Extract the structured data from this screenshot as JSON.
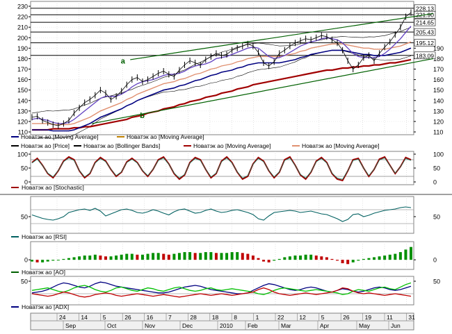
{
  "chart_data": [
    {
      "type": "line",
      "panel": "price",
      "ylim": [
        110,
        232
      ],
      "ticks_left": [
        110,
        120,
        130,
        140,
        150,
        160,
        170,
        180,
        190,
        200,
        210,
        220,
        230
      ],
      "ticks_right": [
        110,
        120,
        130,
        140,
        150,
        160,
        170,
        180,
        190
      ],
      "price_labels": [
        "228.13",
        "221.90",
        "214.65",
        "205.43",
        "195.12",
        "183.09"
      ],
      "hlines": [
        228.13,
        221.9,
        214.65,
        205.43,
        195.12,
        183.09
      ],
      "annotations": [
        {
          "text": "a",
          "x": 0.25,
          "y": 178
        },
        {
          "text": "b",
          "x": 0.3,
          "y": 126
        }
      ],
      "trendlines": [
        {
          "name": "a",
          "from": [
            0.26,
            179
          ],
          "to": [
            1.0,
            223
          ]
        },
        {
          "name": "lower",
          "from": [
            0.16,
            118
          ],
          "to": [
            1.0,
            180
          ]
        }
      ],
      "price_series": [
        124,
        125,
        121,
        119,
        117,
        116,
        118,
        121,
        128,
        133,
        138,
        141,
        145,
        150,
        147,
        141,
        144,
        149,
        155,
        160,
        162,
        158,
        160,
        163,
        166,
        168,
        165,
        163,
        169,
        174,
        178,
        176,
        174,
        179,
        182,
        185,
        183,
        184,
        188,
        190,
        192,
        194,
        192,
        186,
        176,
        173,
        177,
        185,
        188,
        192,
        195,
        197,
        199,
        198,
        200,
        202,
        201,
        198,
        195,
        188,
        178,
        170,
        174,
        181,
        183,
        178,
        185,
        191,
        196,
        203,
        210,
        220,
        224
      ],
      "ma_short": [
        122,
        123,
        122,
        121,
        119,
        118,
        118,
        119,
        122,
        126,
        130,
        134,
        138,
        142,
        144,
        144,
        144,
        146,
        149,
        153,
        156,
        158,
        159,
        160,
        162,
        164,
        165,
        165,
        166,
        168,
        171,
        173,
        174,
        175,
        177,
        180,
        181,
        182,
        184,
        186,
        188,
        190,
        191,
        190,
        186,
        182,
        180,
        181,
        183,
        186,
        189,
        192,
        194,
        196,
        197,
        199,
        200,
        199,
        198,
        195,
        190,
        185,
        182,
        181,
        181,
        181,
        182,
        185,
        189,
        194,
        199,
        205,
        211
      ],
      "ma_mid": [
        118,
        118,
        118,
        118,
        117,
        117,
        117,
        117,
        118,
        120,
        122,
        124,
        127,
        130,
        132,
        134,
        136,
        138,
        141,
        143,
        146,
        148,
        150,
        152,
        154,
        156,
        157,
        158,
        160,
        161,
        163,
        165,
        166,
        168,
        170,
        171,
        173,
        174,
        175,
        177,
        178,
        180,
        181,
        182,
        182,
        182,
        182,
        182,
        183,
        184,
        185,
        187,
        188,
        190,
        191,
        192,
        193,
        194,
        194,
        194,
        193,
        192,
        191,
        190,
        190,
        189,
        189,
        189,
        190,
        191,
        192,
        194,
        196
      ],
      "ma_long": [
        112,
        112,
        112,
        112,
        113,
        113,
        113,
        113,
        114,
        114,
        115,
        115,
        116,
        117,
        118,
        119,
        120,
        121,
        122,
        124,
        125,
        126,
        128,
        129,
        130,
        132,
        133,
        134,
        136,
        137,
        139,
        140,
        141,
        143,
        144,
        145,
        147,
        148,
        149,
        151,
        152,
        153,
        155,
        156,
        157,
        158,
        159,
        160,
        161,
        162,
        163,
        164,
        165,
        166,
        167,
        168,
        169,
        169,
        170,
        171,
        171,
        172,
        172,
        173,
        173,
        174,
        174,
        175,
        176,
        176,
        177,
        178,
        179
      ],
      "legend": [
        {
          "label": "Новатэк ао [Moving Average]",
          "color": "#000080"
        },
        {
          "label": "Новатэк ао [Moving Average]",
          "color": "#c08000"
        },
        {
          "label": "Новатэк ао [Price]",
          "color": "#000000"
        },
        {
          "label": "Новатэк ао [Bollinger Bands]",
          "color": "#000000"
        },
        {
          "label": "Новатэк ао [Moving Average]",
          "color": "#a00000"
        },
        {
          "label": "Новатэк ао [Moving Average]",
          "color": "#e09070"
        }
      ]
    },
    {
      "type": "line",
      "panel": "stochastic",
      "ylim": [
        0,
        100
      ],
      "ticks_left": [
        0,
        50,
        100
      ],
      "ticks_right": [
        0,
        50,
        100
      ],
      "hlines": [
        20,
        80
      ],
      "series": [
        {
          "values": [
            70,
            85,
            60,
            30,
            15,
            40,
            75,
            90,
            80,
            40,
            15,
            30,
            70,
            88,
            75,
            45,
            20,
            35,
            72,
            85,
            70,
            40,
            20,
            45,
            80,
            90,
            65,
            30,
            10,
            25,
            70,
            88,
            80,
            45,
            15,
            30,
            75,
            90,
            70,
            35,
            10,
            20,
            65,
            88,
            75,
            40,
            15,
            35,
            80,
            90,
            60,
            25,
            10,
            35,
            75,
            88,
            70,
            30,
            10,
            5,
            40,
            80,
            85,
            50,
            20,
            45,
            82,
            90,
            60,
            30,
            55,
            88,
            80
          ]
        }
      ],
      "legend": [
        {
          "label": "Новатэк ао [Stochastic]",
          "color": "#a00000"
        }
      ]
    },
    {
      "type": "line",
      "panel": "rsi",
      "ylim": [
        10,
        100
      ],
      "ticks_left": [
        50
      ],
      "ticks_right": [
        50
      ],
      "hlines": [
        30,
        70
      ],
      "series": [
        {
          "values": [
            55,
            50,
            45,
            42,
            40,
            44,
            50,
            62,
            66,
            70,
            72,
            68,
            74,
            66,
            52,
            58,
            64,
            70,
            72,
            68,
            62,
            60,
            64,
            70,
            66,
            60,
            55,
            64,
            70,
            72,
            66,
            60,
            62,
            68,
            72,
            66,
            62,
            64,
            68,
            70,
            66,
            62,
            56,
            44,
            40,
            52,
            62,
            64,
            66,
            68,
            66,
            62,
            64,
            66,
            62,
            58,
            56,
            50,
            44,
            36,
            42,
            56,
            58,
            50,
            54,
            60,
            64,
            68,
            70,
            72,
            76,
            78,
            76
          ]
        }
      ],
      "legend": [
        {
          "label": "Новатэк ао [RSI]",
          "color": "#006060"
        }
      ]
    },
    {
      "type": "bar",
      "panel": "ao",
      "ylim": [
        -8,
        18
      ],
      "ticks_left": [
        0
      ],
      "ticks_right": [
        0
      ],
      "series": [
        {
          "values": [
            -2,
            -3,
            -3,
            -2,
            -1,
            0,
            1,
            2,
            3,
            4,
            5,
            5,
            6,
            5,
            4,
            4,
            5,
            6,
            7,
            7,
            6,
            6,
            7,
            8,
            8,
            7,
            6,
            7,
            8,
            9,
            9,
            8,
            8,
            9,
            9,
            8,
            8,
            8,
            9,
            9,
            8,
            7,
            5,
            2,
            -2,
            -3,
            -1,
            1,
            3,
            4,
            5,
            5,
            6,
            6,
            5,
            4,
            3,
            1,
            -1,
            -4,
            -5,
            -3,
            -1,
            1,
            2,
            3,
            4,
            5,
            6,
            7,
            9,
            12,
            15
          ]
        }
      ],
      "legend": [
        {
          "label": "Новатэк ао [AO]",
          "color": "#006000"
        }
      ]
    },
    {
      "type": "line",
      "panel": "adx",
      "ylim": [
        0,
        55
      ],
      "ticks_left": [
        50
      ],
      "ticks_right": [
        50
      ],
      "hlines": [
        20
      ],
      "series": [
        {
          "values": [
            22,
            24,
            26,
            30,
            36,
            42,
            46,
            44,
            40,
            36,
            34,
            38,
            44,
            48,
            46,
            42,
            38,
            36,
            34,
            32,
            30,
            28,
            26,
            24,
            22,
            22,
            24,
            28,
            32,
            36,
            38,
            40,
            38,
            34,
            30,
            28,
            26,
            24,
            22,
            20,
            20,
            22,
            28,
            34,
            40,
            44,
            42,
            38,
            34,
            30,
            28,
            30,
            34,
            36,
            34,
            30,
            26,
            24,
            28,
            32,
            30,
            26,
            24,
            26,
            30,
            34,
            36,
            34,
            30,
            28,
            30,
            34,
            38
          ],
          "color": "#000080"
        },
        {
          "values": [
            28,
            30,
            32,
            34,
            30,
            26,
            24,
            28,
            34,
            38,
            40,
            36,
            30,
            26,
            24,
            28,
            34,
            36,
            32,
            28,
            26,
            30,
            34,
            32,
            28,
            26,
            30,
            34,
            36,
            32,
            28,
            26,
            28,
            32,
            34,
            30,
            28,
            30,
            32,
            30,
            28,
            26,
            24,
            20,
            18,
            22,
            28,
            32,
            34,
            32,
            30,
            28,
            26,
            28,
            30,
            28,
            26,
            24,
            22,
            18,
            20,
            26,
            30,
            28,
            26,
            30,
            34,
            36,
            32,
            30,
            36,
            42,
            46
          ],
          "color": "#00c000"
        },
        {
          "values": [
            20,
            18,
            16,
            14,
            16,
            20,
            24,
            22,
            18,
            14,
            12,
            14,
            18,
            20,
            22,
            20,
            16,
            14,
            16,
            18,
            20,
            18,
            16,
            14,
            16,
            18,
            16,
            14,
            12,
            14,
            16,
            18,
            20,
            18,
            16,
            18,
            20,
            18,
            16,
            18,
            20,
            22,
            24,
            30,
            34,
            30,
            24,
            20,
            18,
            16,
            18,
            20,
            22,
            20,
            18,
            20,
            22,
            24,
            28,
            34,
            32,
            26,
            22,
            20,
            22,
            20,
            18,
            16,
            18,
            20,
            18,
            16,
            14
          ],
          "color": "#c00000"
        }
      ],
      "legend": [
        {
          "label": "Новатэк ао [ADX]",
          "color": "#000080"
        }
      ]
    },
    {
      "type": "table",
      "panel": "time-axis",
      "days": [
        "24",
        "14",
        "5",
        "26",
        "16",
        "7",
        "28",
        "18",
        "8",
        "1",
        "22",
        "12",
        "5",
        "26",
        "19",
        "11",
        "31"
      ],
      "months": [
        "Sep",
        "Oct",
        "Nov",
        "Dec",
        "2010",
        "Feb",
        "Mar",
        "Apr",
        "May",
        "Jun"
      ]
    }
  ]
}
